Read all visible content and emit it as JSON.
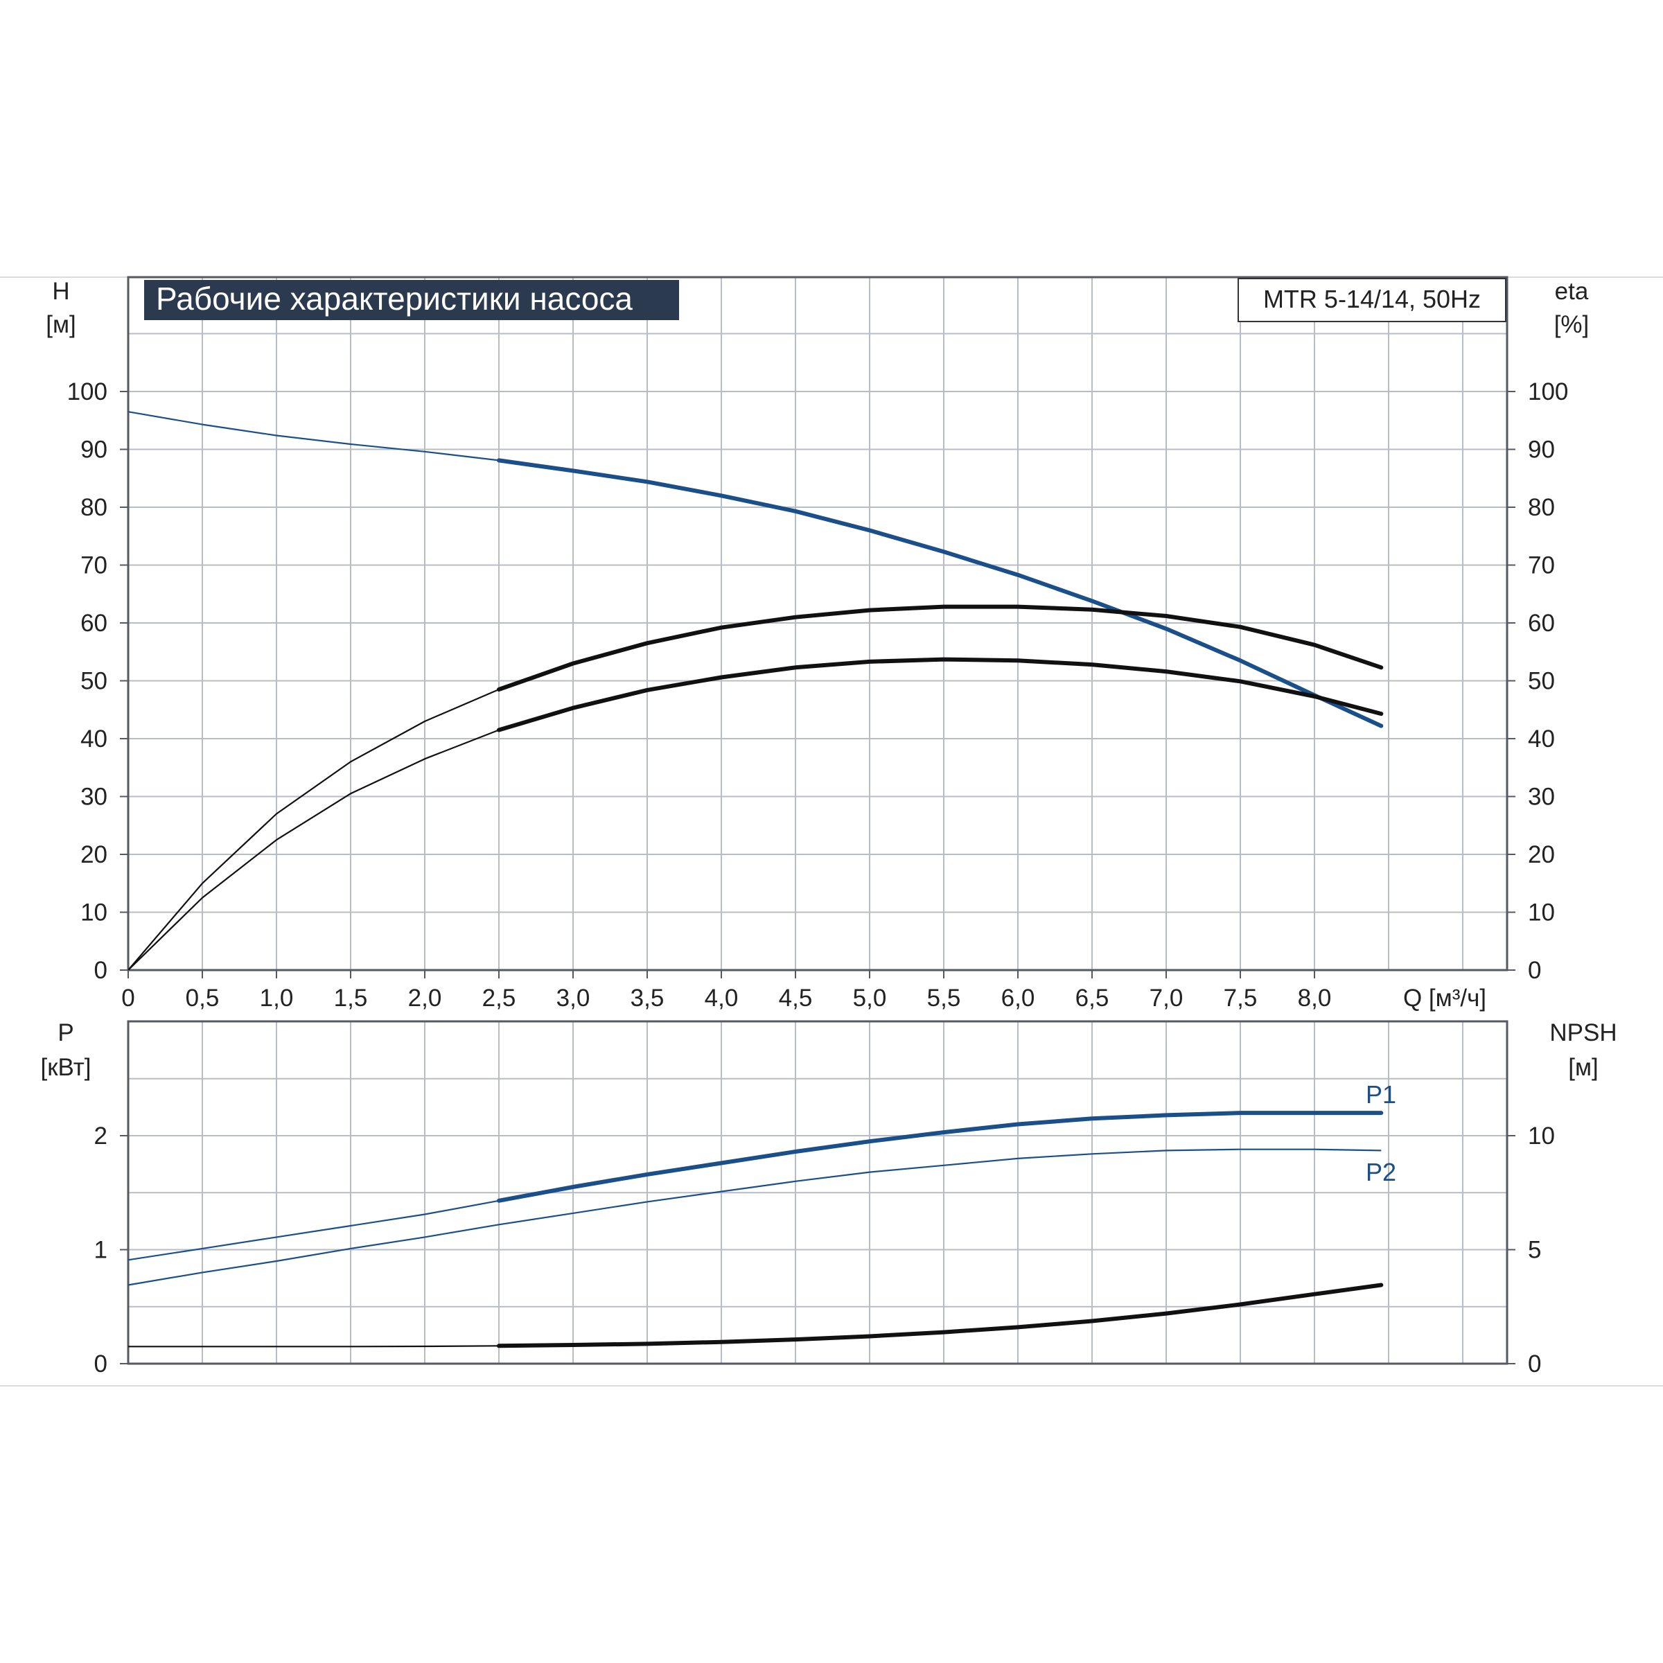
{
  "title": "Рабочие характеристики насоса",
  "model": "MTR 5-14/14, 50Hz",
  "colors": {
    "blue": "#1a4f8a",
    "black": "#111111",
    "grid": "#b8bcc4",
    "title_bg": "#2b3a4e"
  },
  "axes": {
    "x": {
      "label": "Q [м³/ч]",
      "ticks": [
        "0",
        "0,5",
        "1,0",
        "1,5",
        "2,0",
        "2,5",
        "3,0",
        "3,5",
        "4,0",
        "4,5",
        "5,0",
        "5,5",
        "6,0",
        "6,5",
        "7,0",
        "7,5",
        "8,0"
      ]
    },
    "top_left": {
      "label_line1": "H",
      "label_line2": "[м]",
      "ticks": [
        "0",
        "10",
        "20",
        "30",
        "40",
        "50",
        "60",
        "70",
        "80",
        "90",
        "100"
      ]
    },
    "top_right": {
      "label_line1": "eta",
      "label_line2": "[%]",
      "ticks": [
        "0",
        "10",
        "20",
        "30",
        "40",
        "50",
        "60",
        "70",
        "80",
        "90",
        "100"
      ]
    },
    "bottom_left": {
      "label_line1": "P",
      "label_line2": "[кВт]",
      "ticks": [
        "0",
        "1",
        "2"
      ]
    },
    "bottom_right": {
      "label_line1": "NPSH",
      "label_line2": "[м]",
      "ticks": [
        "0",
        "5",
        "10"
      ]
    }
  },
  "curve_labels": {
    "p1": "P1",
    "p2": "P2"
  },
  "chart_data": [
    {
      "type": "line",
      "title": "Рабочие характеристики насоса",
      "xlabel": "Q [м³/ч]",
      "ylabel": "H [м]",
      "y2label": "eta [%]",
      "xlim": [
        0,
        9.3
      ],
      "ylim": [
        0,
        100
      ],
      "y2lim": [
        0,
        100
      ],
      "grid": true,
      "series": [
        {
          "color": "#1a4f8a",
          "axis": "left",
          "heavy_from": 2.5,
          "points": [
            [
              0,
              96.5
            ],
            [
              0.5,
              94.3
            ],
            [
              1.0,
              92.4
            ],
            [
              1.5,
              90.9
            ],
            [
              2.0,
              89.6
            ],
            [
              2.5,
              88.1
            ],
            [
              3.0,
              86.3
            ],
            [
              3.5,
              84.4
            ],
            [
              4.0,
              82.0
            ],
            [
              4.5,
              79.3
            ],
            [
              5.0,
              76.0
            ],
            [
              5.5,
              72.3
            ],
            [
              6.0,
              68.3
            ],
            [
              6.5,
              63.8
            ],
            [
              7.0,
              59.0
            ],
            [
              7.5,
              53.5
            ],
            [
              8.0,
              47.5
            ],
            [
              8.45,
              42.2
            ]
          ]
        },
        {
          "color": "#111111",
          "axis": "right",
          "heavy_from": 2.5,
          "points": [
            [
              0,
              0
            ],
            [
              0.5,
              15
            ],
            [
              1.0,
              27
            ],
            [
              1.5,
              36
            ],
            [
              2.0,
              43
            ],
            [
              2.5,
              48.5
            ],
            [
              3.0,
              53
            ],
            [
              3.5,
              56.5
            ],
            [
              4.0,
              59.2
            ],
            [
              4.5,
              61
            ],
            [
              5.0,
              62.2
            ],
            [
              5.5,
              62.8
            ],
            [
              6.0,
              62.8
            ],
            [
              6.5,
              62.3
            ],
            [
              7.0,
              61.2
            ],
            [
              7.5,
              59.3
            ],
            [
              8.0,
              56.2
            ],
            [
              8.45,
              52.3
            ]
          ]
        },
        {
          "color": "#111111",
          "axis": "right",
          "heavy_from": 2.5,
          "points": [
            [
              0,
              0
            ],
            [
              0.5,
              12.5
            ],
            [
              1.0,
              22.5
            ],
            [
              1.5,
              30.5
            ],
            [
              2.0,
              36.5
            ],
            [
              2.5,
              41.5
            ],
            [
              3.0,
              45.3
            ],
            [
              3.5,
              48.4
            ],
            [
              4.0,
              50.6
            ],
            [
              4.5,
              52.3
            ],
            [
              5.0,
              53.3
            ],
            [
              5.5,
              53.7
            ],
            [
              6.0,
              53.5
            ],
            [
              6.5,
              52.8
            ],
            [
              7.0,
              51.6
            ],
            [
              7.5,
              49.9
            ],
            [
              8.0,
              47.3
            ],
            [
              8.45,
              44.3
            ]
          ]
        }
      ]
    },
    {
      "type": "line",
      "ylabel": "P [кВт]",
      "y2label": "NPSH [м]",
      "xlim": [
        0,
        9.3
      ],
      "ylim": [
        0,
        2.5
      ],
      "y2lim": [
        0,
        12.5
      ],
      "grid": true,
      "series": [
        {
          "name": "P1",
          "color": "#1a4f8a",
          "axis": "left",
          "heavy_from": 2.5,
          "points": [
            [
              0,
              0.91
            ],
            [
              0.5,
              1.01
            ],
            [
              1.0,
              1.11
            ],
            [
              1.5,
              1.21
            ],
            [
              2.0,
              1.31
            ],
            [
              2.5,
              1.43
            ],
            [
              3.0,
              1.55
            ],
            [
              3.5,
              1.66
            ],
            [
              4.0,
              1.76
            ],
            [
              4.5,
              1.86
            ],
            [
              5.0,
              1.95
            ],
            [
              5.5,
              2.03
            ],
            [
              6.0,
              2.1
            ],
            [
              6.5,
              2.15
            ],
            [
              7.0,
              2.18
            ],
            [
              7.5,
              2.2
            ],
            [
              8.0,
              2.2
            ],
            [
              8.45,
              2.2
            ]
          ]
        },
        {
          "name": "P2",
          "color": "#1a4f8a",
          "axis": "left",
          "heavy_from": 99,
          "points": [
            [
              0,
              0.69
            ],
            [
              0.5,
              0.8
            ],
            [
              1.0,
              0.9
            ],
            [
              1.5,
              1.01
            ],
            [
              2.0,
              1.11
            ],
            [
              2.5,
              1.22
            ],
            [
              3.0,
              1.32
            ],
            [
              3.5,
              1.42
            ],
            [
              4.0,
              1.51
            ],
            [
              4.5,
              1.6
            ],
            [
              5.0,
              1.68
            ],
            [
              5.5,
              1.74
            ],
            [
              6.0,
              1.8
            ],
            [
              6.5,
              1.84
            ],
            [
              7.0,
              1.87
            ],
            [
              7.5,
              1.88
            ],
            [
              8.0,
              1.88
            ],
            [
              8.45,
              1.87
            ]
          ]
        },
        {
          "color": "#111111",
          "axis": "right",
          "heavy_from": 2.5,
          "points": [
            [
              0,
              0.75
            ],
            [
              0.5,
              0.75
            ],
            [
              1.0,
              0.75
            ],
            [
              1.5,
              0.75
            ],
            [
              2.0,
              0.76
            ],
            [
              2.5,
              0.78
            ],
            [
              3.0,
              0.82
            ],
            [
              3.5,
              0.87
            ],
            [
              4.0,
              0.95
            ],
            [
              4.5,
              1.06
            ],
            [
              5.0,
              1.2
            ],
            [
              5.5,
              1.38
            ],
            [
              6.0,
              1.6
            ],
            [
              6.5,
              1.87
            ],
            [
              7.0,
              2.2
            ],
            [
              7.5,
              2.6
            ],
            [
              8.0,
              3.05
            ],
            [
              8.45,
              3.45
            ]
          ]
        }
      ]
    }
  ]
}
